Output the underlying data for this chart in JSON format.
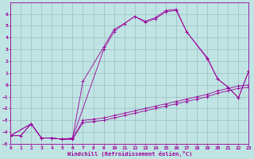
{
  "xlabel": "Windchill (Refroidissement éolien,°C)",
  "bg_color": "#c0e4e4",
  "grid_color": "#9bbdbd",
  "line_color": "#990099",
  "xlim": [
    0,
    23
  ],
  "ylim": [
    -5,
    7
  ],
  "xticks": [
    0,
    1,
    2,
    3,
    4,
    5,
    6,
    7,
    8,
    9,
    10,
    11,
    12,
    13,
    14,
    15,
    16,
    17,
    18,
    19,
    20,
    21,
    22,
    23
  ],
  "yticks": [
    -5,
    -4,
    -3,
    -2,
    -1,
    0,
    1,
    2,
    3,
    4,
    5,
    6
  ],
  "curve_a_x": [
    0,
    2,
    3,
    4,
    5,
    6,
    9,
    10,
    11,
    12,
    13,
    14,
    15,
    16,
    17,
    19,
    20,
    21,
    22,
    23
  ],
  "curve_a_y": [
    -4.3,
    -3.3,
    -4.5,
    -4.5,
    -4.6,
    -4.5,
    3.0,
    4.5,
    5.2,
    5.8,
    5.3,
    5.6,
    6.2,
    6.3,
    4.5,
    2.2,
    0.5,
    -0.2,
    -1.1,
    1.2
  ],
  "curve_b_x": [
    0,
    2,
    3,
    4,
    5,
    6,
    7,
    9,
    10,
    11,
    12,
    13,
    14,
    15,
    16,
    17,
    19,
    20,
    21,
    22,
    23
  ],
  "curve_b_y": [
    -4.3,
    -3.3,
    -4.5,
    -4.5,
    -4.6,
    -4.5,
    0.3,
    3.2,
    4.7,
    5.2,
    5.8,
    5.4,
    5.7,
    6.3,
    6.4,
    4.5,
    2.3,
    0.5,
    -0.2,
    -1.1,
    1.2
  ],
  "line_c_x": [
    0,
    1,
    2,
    3,
    4,
    5,
    6,
    7,
    8,
    9,
    10,
    11,
    12,
    13,
    14,
    15,
    16,
    17,
    18,
    19,
    20,
    21,
    22,
    23
  ],
  "line_c_y": [
    -4.3,
    -4.3,
    -3.3,
    -4.5,
    -4.5,
    -4.6,
    -4.6,
    -3.0,
    -2.9,
    -2.8,
    -2.6,
    -2.4,
    -2.2,
    -2.0,
    -1.8,
    -1.6,
    -1.4,
    -1.2,
    -1.0,
    -0.8,
    -0.5,
    -0.3,
    -0.1,
    0.0
  ],
  "line_d_x": [
    0,
    1,
    2,
    3,
    4,
    5,
    6,
    7,
    8,
    9,
    10,
    11,
    12,
    13,
    14,
    15,
    16,
    17,
    18,
    19,
    20,
    21,
    22,
    23
  ],
  "line_d_y": [
    -4.3,
    -4.3,
    -3.3,
    -4.5,
    -4.5,
    -4.6,
    -4.6,
    -3.2,
    -3.1,
    -3.0,
    -2.8,
    -2.6,
    -2.4,
    -2.2,
    -2.0,
    -1.8,
    -1.6,
    -1.4,
    -1.2,
    -1.0,
    -0.7,
    -0.5,
    -0.3,
    -0.2
  ]
}
